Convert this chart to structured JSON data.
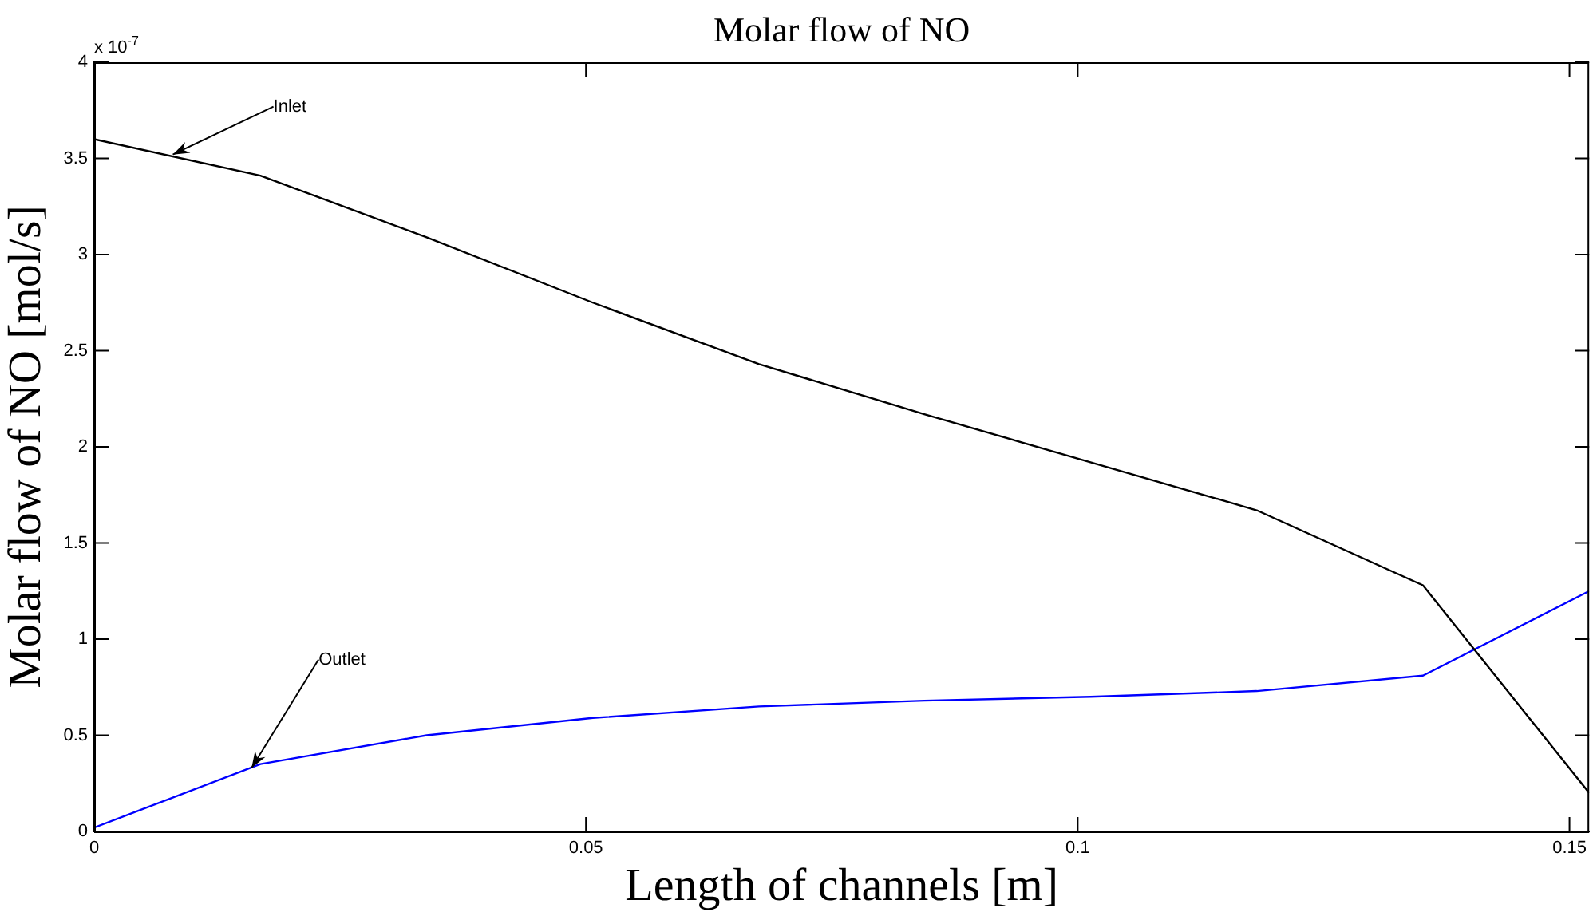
{
  "chart_data": {
    "type": "line",
    "title": "Molar flow of NO",
    "xlabel": "Length of channels [m]",
    "ylabel": "Molar flow of NO [mol/s]",
    "x": [
      0,
      0.0169,
      0.0338,
      0.0507,
      0.0676,
      0.0844,
      0.1013,
      0.1182,
      0.1351,
      0.152
    ],
    "series": [
      {
        "color": "#000000",
        "values": [
          3.6,
          3.41,
          3.09,
          2.75,
          2.43,
          2.17,
          1.92,
          1.67,
          1.28,
          0.2
        ]
      },
      {
        "color": "#0000ff",
        "values": [
          0.02,
          0.35,
          0.5,
          0.59,
          0.65,
          0.68,
          0.7,
          0.73,
          0.81,
          1.25
        ]
      }
    ],
    "xlim": [
      0,
      0.152
    ],
    "xticks": [
      0,
      0.05,
      0.1,
      0.15
    ],
    "ylim": [
      0,
      4
    ],
    "yticks": [
      0,
      0.5,
      1,
      1.5,
      2,
      2.5,
      3,
      3.5,
      4
    ],
    "grid": false,
    "legend": false,
    "marker": "none",
    "line_style": "solid",
    "annotations": [
      "x 10$^{-7}$",
      {
        "text": "Inlet",
        "x": 0.008,
        "y": 3.52
      },
      {
        "text": "Outlet",
        "x": 0.016,
        "y": 0.33
      }
    ]
  }
}
